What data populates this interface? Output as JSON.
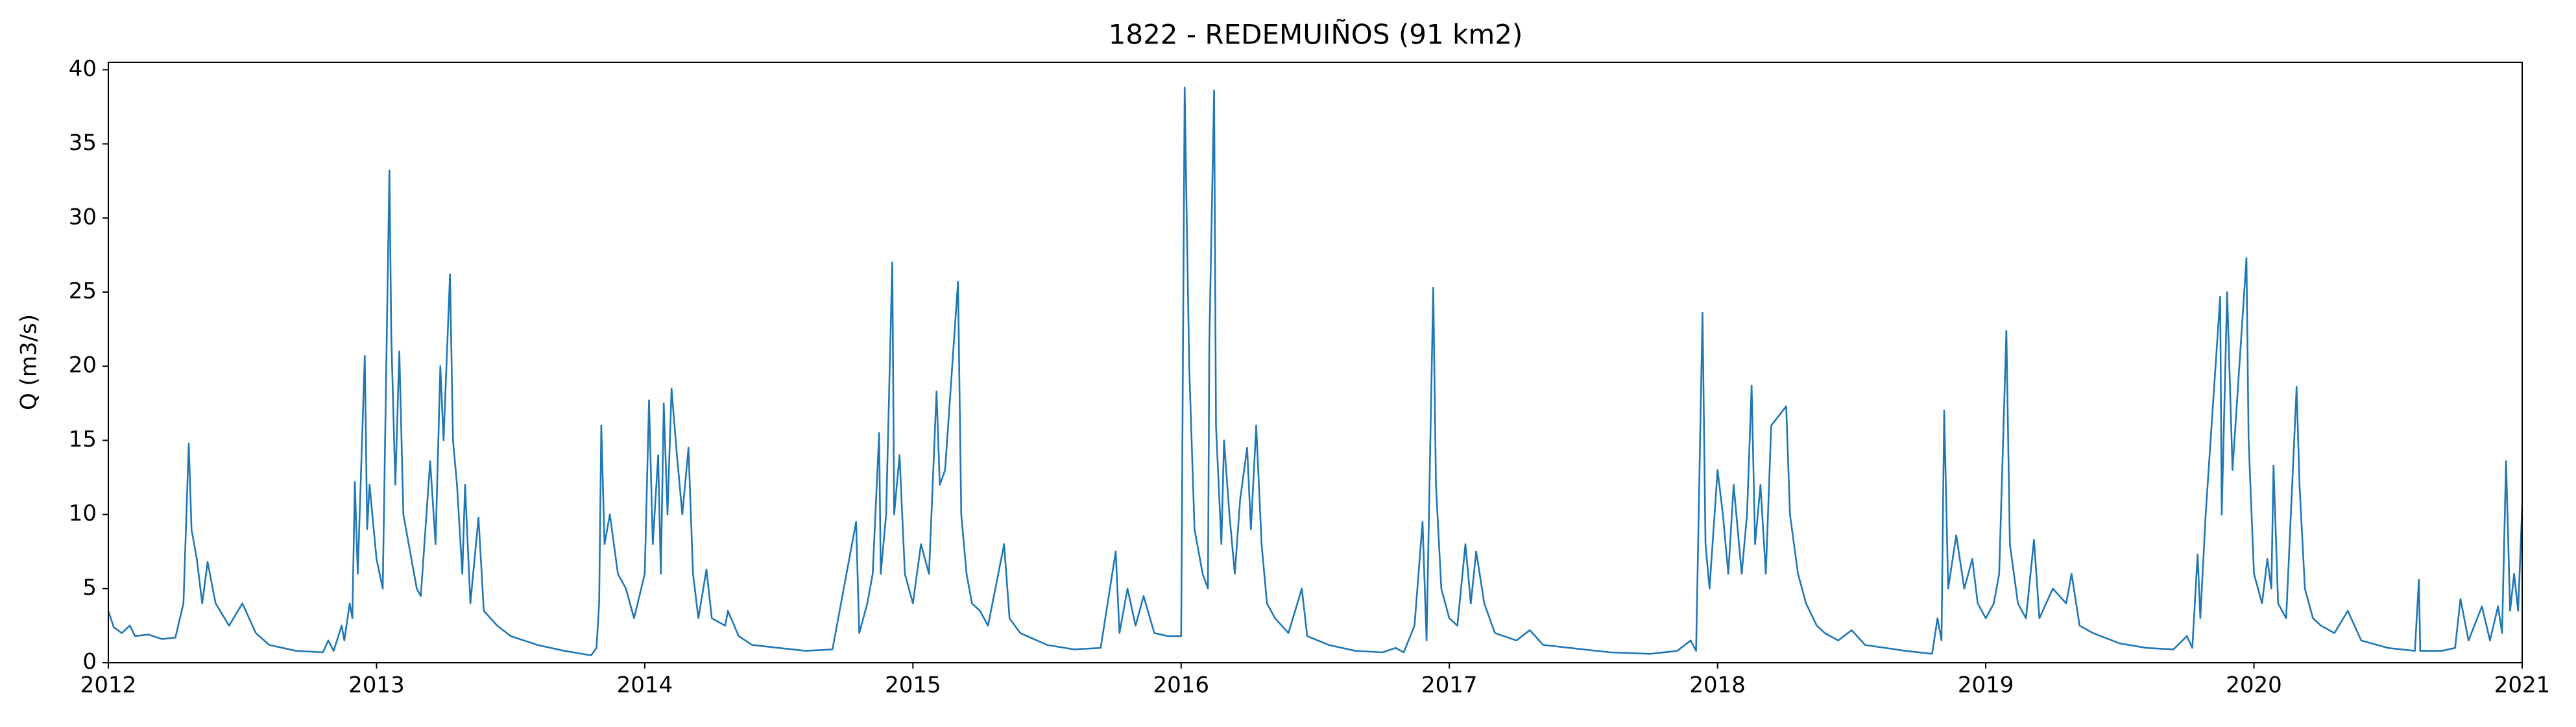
{
  "chart_data": {
    "type": "line",
    "title": "1822 - REDEMUIÑOS (91 km2)",
    "y_label": "Q (m3/s)",
    "color": "#1f77b4",
    "xlim": [
      2012,
      2021
    ],
    "xticks": [
      2012,
      2013,
      2014,
      2015,
      2016,
      2017,
      2018,
      2019,
      2020,
      2021
    ],
    "ylim": [
      0,
      40.5
    ],
    "yticks": [
      0,
      5,
      10,
      15,
      20,
      25,
      30,
      35,
      40
    ],
    "grid": false,
    "x": [
      2012,
      2012.02,
      2012.05,
      2012.08,
      2012.1,
      2012.15,
      2012.2,
      2012.25,
      2012.28,
      2012.3,
      2012.31,
      2012.33,
      2012.35,
      2012.37,
      2012.4,
      2012.45,
      2012.5,
      2012.55,
      2012.6,
      2012.7,
      2012.8,
      2012.82,
      2012.84,
      2012.87,
      2012.88,
      2012.9,
      2012.91,
      2012.919,
      2012.93,
      2012.956,
      2012.965,
      2012.974,
      2013,
      2013.023,
      2013.048,
      2013.055,
      2013.07,
      2013.085,
      2013.1,
      2013.13,
      2013.15,
      2013.165,
      2013.2,
      2013.22,
      2013.238,
      2013.25,
      2013.274,
      2013.285,
      2013.3,
      2013.32,
      2013.33,
      2013.35,
      2013.38,
      2013.4,
      2013.45,
      2013.5,
      2013.6,
      2013.7,
      2013.8,
      2013.82,
      2013.83,
      2013.838,
      2013.85,
      2013.87,
      2013.9,
      2013.93,
      2013.96,
      2014,
      2014.016,
      2014.03,
      2014.05,
      2014.06,
      2014.071,
      2014.085,
      2014.1,
      2014.12,
      2014.14,
      2014.163,
      2014.18,
      2014.2,
      2014.23,
      2014.25,
      2014.3,
      2014.31,
      2014.35,
      2014.4,
      2014.5,
      2014.6,
      2014.7,
      2014.788,
      2014.8,
      2014.83,
      2014.85,
      2014.874,
      2014.88,
      2014.9,
      2014.923,
      2014.93,
      2014.95,
      2014.97,
      2015,
      2015.03,
      2015.06,
      2015.088,
      2015.1,
      2015.12,
      2015.168,
      2015.18,
      2015.2,
      2015.22,
      2015.25,
      2015.28,
      2015.34,
      2015.36,
      2015.4,
      2015.5,
      2015.6,
      2015.7,
      2015.756,
      2015.77,
      2015.8,
      2015.83,
      2015.86,
      2015.9,
      2015.95,
      2016,
      2016.013,
      2016.02,
      2016.03,
      2016.05,
      2016.08,
      2016.1,
      2016.105,
      2016.123,
      2016.13,
      2016.15,
      2016.16,
      2016.18,
      2016.2,
      2016.22,
      2016.246,
      2016.26,
      2016.28,
      2016.3,
      2016.32,
      2016.35,
      2016.4,
      2016.45,
      2016.47,
      2016.55,
      2016.65,
      2016.75,
      2016.8,
      2016.83,
      2016.87,
      2016.9,
      2016.915,
      2016.94,
      2016.95,
      2016.97,
      2017,
      2017.03,
      2017.06,
      2017.08,
      2017.1,
      2017.13,
      2017.17,
      2017.25,
      2017.3,
      2017.35,
      2017.45,
      2017.6,
      2017.75,
      2017.85,
      2017.9,
      2017.92,
      2017.944,
      2017.955,
      2017.97,
      2018,
      2018.02,
      2018.04,
      2018.06,
      2018.09,
      2018.11,
      2018.127,
      2018.14,
      2018.16,
      2018.18,
      2018.2,
      2018.256,
      2018.27,
      2018.3,
      2018.33,
      2018.37,
      2018.4,
      2018.45,
      2018.5,
      2018.55,
      2018.7,
      2018.8,
      2018.82,
      2018.835,
      2018.845,
      2018.86,
      2018.89,
      2018.92,
      2018.95,
      2018.97,
      2019,
      2019.03,
      2019.05,
      2019.077,
      2019.09,
      2019.12,
      2019.15,
      2019.18,
      2019.2,
      2019.25,
      2019.3,
      2019.32,
      2019.35,
      2019.4,
      2019.5,
      2019.6,
      2019.7,
      2019.75,
      2019.77,
      2019.79,
      2019.8,
      2019.82,
      2019.874,
      2019.88,
      2019.9,
      2019.92,
      2019.972,
      2019.98,
      2020,
      2020.03,
      2020.05,
      2020.065,
      2020.073,
      2020.09,
      2020.12,
      2020.159,
      2020.17,
      2020.19,
      2020.22,
      2020.25,
      2020.3,
      2020.35,
      2020.4,
      2020.5,
      2020.6,
      2020.615,
      2020.62,
      2020.7,
      2020.75,
      2020.77,
      2020.8,
      2020.85,
      2020.88,
      2020.91,
      2020.925,
      2020.94,
      2020.955,
      2020.97,
      2020.985,
      2021
    ],
    "values": [
      3.5,
      2.4,
      2.0,
      2.5,
      1.8,
      1.9,
      1.6,
      1.7,
      4,
      14.8,
      9,
      7,
      4,
      6.8,
      4,
      2.5,
      4,
      2,
      1.2,
      0.8,
      0.7,
      1.5,
      0.8,
      2.5,
      1.5,
      4,
      3,
      12.2,
      6,
      20.7,
      9,
      12,
      7,
      5,
      33.2,
      22,
      12,
      21,
      10,
      7,
      5,
      4.5,
      13.6,
      8,
      20,
      15,
      26.2,
      15,
      12,
      6,
      12,
      4,
      9.8,
      3.5,
      2.5,
      1.8,
      1.2,
      0.8,
      0.5,
      1,
      4,
      16,
      8,
      10,
      6,
      5,
      3,
      6,
      17.7,
      8,
      14,
      6,
      17.5,
      10,
      18.5,
      14,
      10,
      14.5,
      6,
      3,
      6.3,
      3,
      2.5,
      3.5,
      1.8,
      1.2,
      1,
      0.8,
      0.9,
      9.5,
      2,
      4,
      6,
      15.5,
      6,
      10,
      27,
      10,
      14,
      6,
      4,
      8,
      6,
      18.3,
      12,
      13,
      25.7,
      10,
      6,
      4,
      3.5,
      2.5,
      8,
      3,
      2,
      1.2,
      0.9,
      1,
      7.5,
      2,
      5,
      2.5,
      4.5,
      2,
      1.8,
      1.8,
      38.8,
      31,
      20,
      9,
      6,
      5,
      21.5,
      38.6,
      16,
      8,
      15,
      10,
      6,
      11,
      14.5,
      9,
      16,
      8,
      4,
      3,
      2,
      5,
      1.8,
      1.2,
      0.8,
      0.7,
      1,
      0.7,
      2.5,
      9.5,
      1.5,
      25.3,
      12,
      5,
      3,
      2.5,
      8,
      4,
      7.5,
      4,
      2,
      1.5,
      2.2,
      1.2,
      1,
      0.7,
      0.6,
      0.8,
      1.5,
      0.8,
      23.6,
      8,
      5,
      13,
      10,
      6,
      12,
      6,
      10,
      18.7,
      8,
      12,
      6,
      16,
      17.3,
      10,
      6,
      4,
      2.5,
      2,
      1.5,
      2.2,
      1.2,
      0.8,
      0.6,
      3,
      1.5,
      17,
      5,
      8.6,
      5,
      7,
      4,
      3,
      4,
      6,
      22.4,
      8,
      4,
      3,
      8.3,
      3,
      5,
      4,
      6,
      2.5,
      2,
      1.3,
      1,
      0.9,
      1.8,
      1,
      7.3,
      3,
      10,
      24.7,
      10,
      25,
      13,
      27.3,
      15,
      6,
      4,
      7,
      5,
      13.3,
      4,
      3,
      18.6,
      12,
      5,
      3,
      2.5,
      2,
      3.5,
      1.5,
      1,
      0.8,
      5.6,
      0.8,
      0.8,
      1,
      4.3,
      1.5,
      3.8,
      1.5,
      3.8,
      2,
      13.6,
      3.5,
      6,
      3.5,
      10.5
    ]
  }
}
